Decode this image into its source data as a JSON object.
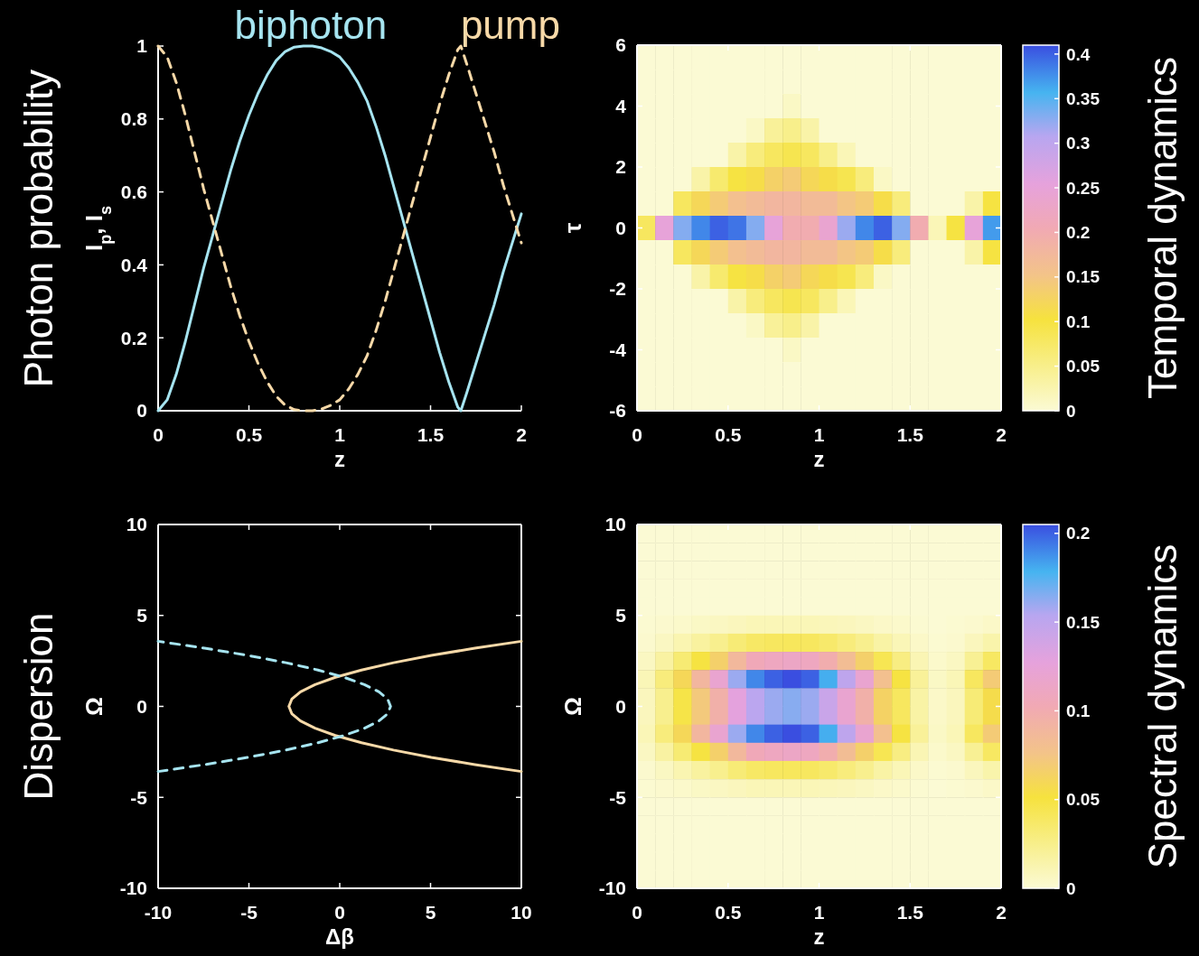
{
  "chart_data": [
    {
      "type": "line",
      "ylabel": "I$_{p}$, I$_{s}$",
      "xlabel": "z",
      "annotations": [
        "Photon probability"
      ],
      "legend": "top",
      "xlim": [
        0,
        2
      ],
      "ylim": [
        0,
        1
      ],
      "xticks": [
        0,
        0.5,
        1,
        1.5,
        2
      ],
      "yticks": [
        0,
        0.2,
        0.4,
        0.6,
        0.8,
        1
      ],
      "x": [
        0,
        0.05,
        0.1,
        0.15,
        0.2,
        0.25,
        0.3,
        0.35,
        0.4,
        0.45,
        0.5,
        0.55,
        0.6,
        0.65,
        0.7,
        0.75,
        0.8,
        0.85,
        0.9,
        0.95,
        1,
        1.05,
        1.1,
        1.15,
        1.2,
        1.25,
        1.3,
        1.35,
        1.4,
        1.45,
        1.5,
        1.55,
        1.6,
        1.65,
        1.667,
        1.7,
        1.75,
        1.8,
        1.85,
        1.9,
        1.95,
        2
      ],
      "series": [
        {
          "name": "biphoton",
          "color": "#a6e4f0",
          "line_style": "solid",
          "values": [
            0,
            0.03,
            0.1,
            0.19,
            0.29,
            0.39,
            0.48,
            0.57,
            0.66,
            0.74,
            0.81,
            0.87,
            0.92,
            0.96,
            0.985,
            0.997,
            1,
            1,
            0.995,
            0.985,
            0.97,
            0.94,
            0.9,
            0.85,
            0.78,
            0.7,
            0.61,
            0.52,
            0.43,
            0.34,
            0.25,
            0.16,
            0.08,
            0.01,
            0,
            0.05,
            0.13,
            0.21,
            0.29,
            0.38,
            0.46,
            0.54
          ]
        },
        {
          "name": "pump",
          "color": "#f7d9a8",
          "line_style": "dashed",
          "values": [
            1,
            0.97,
            0.9,
            0.81,
            0.71,
            0.61,
            0.52,
            0.43,
            0.34,
            0.26,
            0.19,
            0.13,
            0.08,
            0.04,
            0.015,
            0.003,
            0,
            0,
            0.005,
            0.015,
            0.03,
            0.06,
            0.1,
            0.15,
            0.22,
            0.3,
            0.39,
            0.48,
            0.57,
            0.66,
            0.75,
            0.84,
            0.92,
            0.99,
            1,
            0.95,
            0.87,
            0.79,
            0.71,
            0.62,
            0.54,
            0.46
          ]
        }
      ]
    },
    {
      "type": "heatmap",
      "xlabel": "z",
      "ylabel": "τ",
      "annotations": [
        "Temporal dynamics"
      ],
      "xlim": [
        0,
        2
      ],
      "ylim": [
        -6,
        6
      ],
      "xticks": [
        0,
        0.5,
        1,
        1.5,
        2
      ],
      "yticks": [
        -6,
        -4,
        -2,
        0,
        2,
        4,
        6
      ],
      "clim": [
        0,
        0.41
      ],
      "cticks": [
        0,
        0.05,
        0.1,
        0.15,
        0.2,
        0.25,
        0.3,
        0.35,
        0.4
      ],
      "x": [
        0.05,
        0.15,
        0.25,
        0.35,
        0.45,
        0.55,
        0.65,
        0.75,
        0.85,
        0.95,
        1.05,
        1.15,
        1.25,
        1.35,
        1.45,
        1.55,
        1.65,
        1.75,
        1.85,
        1.95
      ],
      "y": [
        5.6,
        4.8,
        4,
        3.2,
        2.4,
        1.6,
        0.8,
        0,
        -0.8,
        -1.6,
        -2.4,
        -3.2,
        -4,
        -4.8,
        -5.6
      ],
      "cells": [
        [
          0,
          0,
          0,
          0,
          0,
          0,
          0,
          0,
          0,
          0,
          0,
          0,
          0,
          0,
          0,
          0,
          0,
          0,
          0,
          0
        ],
        [
          0,
          0,
          0,
          0,
          0,
          0,
          0,
          0,
          0,
          0,
          0,
          0,
          0,
          0,
          0,
          0,
          0,
          0,
          0,
          0
        ],
        [
          0,
          0,
          0,
          0,
          0,
          0,
          0,
          0,
          0.01,
          0,
          0,
          0,
          0,
          0,
          0,
          0,
          0,
          0,
          0,
          0
        ],
        [
          0,
          0,
          0,
          0,
          0,
          0,
          0.01,
          0.04,
          0.05,
          0.03,
          0,
          0,
          0,
          0,
          0,
          0,
          0,
          0,
          0,
          0
        ],
        [
          0,
          0,
          0,
          0,
          0,
          0.03,
          0.06,
          0.08,
          0.09,
          0.08,
          0.05,
          0.02,
          0,
          0,
          0,
          0,
          0,
          0,
          0,
          0
        ],
        [
          0,
          0,
          0,
          0.03,
          0.07,
          0.1,
          0.11,
          0.13,
          0.14,
          0.12,
          0.11,
          0.09,
          0.06,
          0.01,
          0,
          0,
          0,
          0,
          0,
          0
        ],
        [
          0,
          0,
          0.08,
          0.12,
          0.14,
          0.16,
          0.17,
          0.18,
          0.18,
          0.17,
          0.17,
          0.15,
          0.14,
          0.11,
          0.06,
          0,
          0,
          0,
          0.03,
          0.1
        ],
        [
          0.08,
          0.25,
          0.33,
          0.38,
          0.4,
          0.39,
          0.33,
          0.25,
          0.2,
          0.2,
          0.24,
          0.32,
          0.38,
          0.4,
          0.33,
          0.2,
          0.02,
          0.1,
          0.25,
          0.37
        ],
        [
          0,
          0,
          0.08,
          0.12,
          0.14,
          0.16,
          0.17,
          0.18,
          0.18,
          0.17,
          0.17,
          0.15,
          0.14,
          0.11,
          0.06,
          0,
          0,
          0,
          0.03,
          0.1
        ],
        [
          0,
          0,
          0,
          0.03,
          0.07,
          0.1,
          0.11,
          0.13,
          0.14,
          0.12,
          0.11,
          0.09,
          0.06,
          0.01,
          0,
          0,
          0,
          0,
          0,
          0
        ],
        [
          0,
          0,
          0,
          0,
          0,
          0.03,
          0.06,
          0.08,
          0.09,
          0.08,
          0.05,
          0.02,
          0,
          0,
          0,
          0,
          0,
          0,
          0,
          0
        ],
        [
          0,
          0,
          0,
          0,
          0,
          0,
          0.01,
          0.04,
          0.05,
          0.03,
          0,
          0,
          0,
          0,
          0,
          0,
          0,
          0,
          0,
          0
        ],
        [
          0,
          0,
          0,
          0,
          0,
          0,
          0,
          0,
          0.01,
          0,
          0,
          0,
          0,
          0,
          0,
          0,
          0,
          0,
          0,
          0
        ],
        [
          0,
          0,
          0,
          0,
          0,
          0,
          0,
          0,
          0,
          0,
          0,
          0,
          0,
          0,
          0,
          0,
          0,
          0,
          0,
          0
        ],
        [
          0,
          0,
          0,
          0,
          0,
          0,
          0,
          0,
          0,
          0,
          0,
          0,
          0,
          0,
          0,
          0,
          0,
          0,
          0,
          0
        ]
      ]
    },
    {
      "type": "line",
      "xlabel": "Δβ",
      "ylabel": "Ω",
      "annotations": [
        "Dispersion"
      ],
      "xlim": [
        -10,
        10
      ],
      "ylim": [
        -10,
        10
      ],
      "xticks": [
        -10,
        -5,
        0,
        5,
        10
      ],
      "yticks": [
        -10,
        -5,
        0,
        5,
        10
      ],
      "series": [
        {
          "color": "#f7d9a8",
          "line_style": "solid",
          "x": [
            10,
            7.44,
            5.04,
            2.96,
            1.2,
            -0.24,
            -1.36,
            -2.16,
            -2.64,
            -2.8,
            -2.64,
            -2.16,
            -1.36,
            -0.24,
            1.2,
            2.96,
            5.04,
            7.44,
            10
          ],
          "values": [
            -3.58,
            -3.2,
            -2.8,
            -2.4,
            -2,
            -1.6,
            -1.2,
            -0.8,
            -0.4,
            0,
            0.4,
            0.8,
            1.2,
            1.6,
            2,
            2.4,
            2.8,
            3.2,
            3.58
          ]
        },
        {
          "color": "#a6e4f0",
          "line_style": "dashed",
          "x": [
            -10,
            -7.44,
            -5.04,
            -2.96,
            -1.2,
            0.24,
            1.36,
            2.16,
            2.64,
            2.8,
            2.64,
            2.16,
            1.36,
            0.24,
            -1.2,
            -2.96,
            -5.04,
            -7.44,
            -10
          ],
          "values": [
            -3.58,
            -3.2,
            -2.8,
            -2.4,
            -2,
            -1.6,
            -1.2,
            -0.8,
            -0.4,
            0,
            0.4,
            0.8,
            1.2,
            1.6,
            2,
            2.4,
            2.8,
            3.2,
            3.58
          ]
        }
      ]
    },
    {
      "type": "heatmap",
      "xlabel": "z",
      "ylabel": "Ω",
      "annotations": [
        "Spectral dynamics"
      ],
      "xlim": [
        0,
        2
      ],
      "ylim": [
        -10,
        10
      ],
      "xticks": [
        0,
        0.5,
        1,
        1.5,
        2
      ],
      "yticks": [
        -10,
        -5,
        0,
        5,
        10
      ],
      "clim": [
        0,
        0.205
      ],
      "cticks": [
        0,
        0.05,
        0.1,
        0.15,
        0.2
      ],
      "x": [
        0.05,
        0.15,
        0.25,
        0.35,
        0.45,
        0.55,
        0.65,
        0.75,
        0.85,
        0.95,
        1.05,
        1.15,
        1.25,
        1.35,
        1.45,
        1.55,
        1.65,
        1.75,
        1.85,
        1.95
      ],
      "y": [
        9.5,
        8.5,
        7.5,
        6.5,
        5.5,
        4.5,
        3.5,
        2.5,
        1.5,
        0.5,
        -0.5,
        -1.5,
        -2.5,
        -3.5,
        -4.5,
        -5.5,
        -6.5,
        -7.5,
        -8.5,
        -9.5
      ],
      "cells": [
        [
          0,
          0,
          0,
          0,
          0,
          0,
          0,
          0,
          0,
          0,
          0,
          0,
          0,
          0,
          0,
          0,
          0,
          0,
          0,
          0
        ],
        [
          0,
          0,
          0,
          0,
          0,
          0,
          0,
          0,
          0,
          0,
          0,
          0,
          0,
          0,
          0,
          0,
          0,
          0,
          0,
          0
        ],
        [
          0,
          0,
          0,
          0,
          0,
          0,
          0,
          0,
          0,
          0,
          0,
          0,
          0,
          0,
          0,
          0,
          0,
          0,
          0,
          0
        ],
        [
          0,
          0,
          0,
          0,
          0,
          0,
          0,
          0,
          0,
          0,
          0,
          0,
          0,
          0,
          0,
          0,
          0,
          0,
          0,
          0
        ],
        [
          0,
          0,
          0,
          0,
          0,
          0,
          0,
          0,
          0,
          0,
          0,
          0,
          0,
          0,
          0,
          0,
          0,
          0,
          0,
          0
        ],
        [
          0.001,
          0.002,
          0.003,
          0.005,
          0.006,
          0.008,
          0.01,
          0.01,
          0.01,
          0.01,
          0.009,
          0.008,
          0.006,
          0.004,
          0.003,
          0.001,
          0,
          0.001,
          0.002,
          0.004
        ],
        [
          0.002,
          0.006,
          0.012,
          0.018,
          0.024,
          0.032,
          0.038,
          0.04,
          0.041,
          0.04,
          0.036,
          0.03,
          0.024,
          0.016,
          0.01,
          0.004,
          0.001,
          0.002,
          0.008,
          0.014
        ],
        [
          0.006,
          0.017,
          0.033,
          0.05,
          0.066,
          0.088,
          0.105,
          0.11,
          0.113,
          0.11,
          0.099,
          0.083,
          0.066,
          0.044,
          0.028,
          0.011,
          0.003,
          0.006,
          0.022,
          0.039
        ],
        [
          0.01,
          0.03,
          0.06,
          0.09,
          0.12,
          0.16,
          0.19,
          0.2,
          0.205,
          0.2,
          0.18,
          0.15,
          0.12,
          0.08,
          0.05,
          0.02,
          0.005,
          0.01,
          0.04,
          0.07
        ],
        [
          0.008,
          0.024,
          0.048,
          0.072,
          0.096,
          0.128,
          0.152,
          0.16,
          0.164,
          0.16,
          0.144,
          0.12,
          0.096,
          0.064,
          0.04,
          0.016,
          0.004,
          0.008,
          0.032,
          0.056
        ],
        [
          0.008,
          0.024,
          0.048,
          0.072,
          0.096,
          0.128,
          0.152,
          0.16,
          0.164,
          0.16,
          0.144,
          0.12,
          0.096,
          0.064,
          0.04,
          0.016,
          0.004,
          0.008,
          0.032,
          0.056
        ],
        [
          0.01,
          0.03,
          0.06,
          0.09,
          0.12,
          0.16,
          0.19,
          0.2,
          0.205,
          0.2,
          0.18,
          0.15,
          0.12,
          0.08,
          0.05,
          0.02,
          0.005,
          0.01,
          0.04,
          0.07
        ],
        [
          0.006,
          0.017,
          0.033,
          0.05,
          0.066,
          0.088,
          0.105,
          0.11,
          0.113,
          0.11,
          0.099,
          0.083,
          0.066,
          0.044,
          0.028,
          0.011,
          0.003,
          0.006,
          0.022,
          0.039
        ],
        [
          0.002,
          0.006,
          0.012,
          0.018,
          0.024,
          0.032,
          0.038,
          0.04,
          0.041,
          0.04,
          0.036,
          0.03,
          0.024,
          0.016,
          0.01,
          0.004,
          0.001,
          0.002,
          0.008,
          0.014
        ],
        [
          0.001,
          0.002,
          0.003,
          0.005,
          0.006,
          0.008,
          0.01,
          0.01,
          0.01,
          0.01,
          0.009,
          0.008,
          0.006,
          0.004,
          0.003,
          0.001,
          0,
          0.001,
          0.002,
          0.004
        ],
        [
          0,
          0,
          0,
          0,
          0,
          0,
          0,
          0,
          0,
          0,
          0,
          0,
          0,
          0,
          0,
          0,
          0,
          0,
          0,
          0
        ],
        [
          0,
          0,
          0,
          0,
          0,
          0,
          0,
          0,
          0,
          0,
          0,
          0,
          0,
          0,
          0,
          0,
          0,
          0,
          0,
          0
        ],
        [
          0,
          0,
          0,
          0,
          0,
          0,
          0,
          0,
          0,
          0,
          0,
          0,
          0,
          0,
          0,
          0,
          0,
          0,
          0,
          0
        ],
        [
          0,
          0,
          0,
          0,
          0,
          0,
          0,
          0,
          0,
          0,
          0,
          0,
          0,
          0,
          0,
          0,
          0,
          0,
          0,
          0
        ],
        [
          0,
          0,
          0,
          0,
          0,
          0,
          0,
          0,
          0,
          0,
          0,
          0,
          0,
          0,
          0,
          0,
          0,
          0,
          0,
          0
        ]
      ]
    }
  ]
}
